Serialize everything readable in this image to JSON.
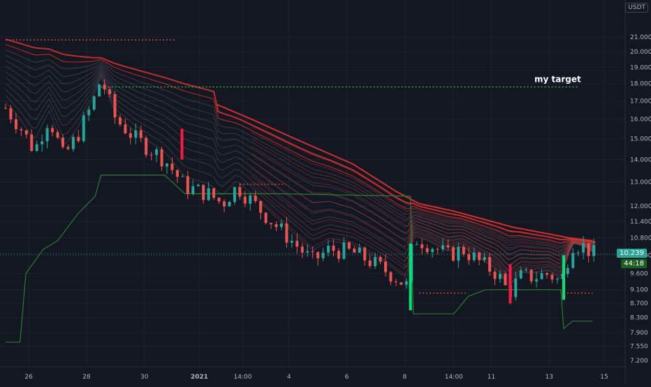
{
  "currency": "USDT",
  "chart_data": {
    "type": "candlestick",
    "annotation": "my target",
    "target_level": 17.8,
    "price_label": "10.239",
    "timer_label": "44:18",
    "y_ticks": [
      "21.000",
      "20.000",
      "19.000",
      "18.000",
      "17.000",
      "16.000",
      "15.000",
      "14.000",
      "13.000",
      "12.000",
      "11.400",
      "10.800",
      "10.200",
      "9.600",
      "9.100",
      "8.700",
      "8.300",
      "7.900",
      "7.550",
      "7.200"
    ],
    "y_tick_values": [
      21.0,
      20.0,
      19.0,
      18.0,
      17.0,
      16.0,
      15.0,
      14.0,
      13.0,
      12.0,
      11.4,
      10.8,
      10.2,
      9.6,
      9.1,
      8.7,
      8.3,
      7.9,
      7.55,
      7.2
    ],
    "x_labels": [
      "26",
      "28",
      "30",
      "2021",
      "14:00",
      "4",
      "6",
      "8",
      "14:00",
      "11",
      "13",
      "15"
    ],
    "ylim": [
      7.0,
      22.0
    ],
    "log_scale": true,
    "grid": true,
    "close_path": [
      [
        0,
        16.6
      ],
      [
        0.5,
        15.6
      ],
      [
        1,
        14.4
      ],
      [
        1.5,
        16.1
      ],
      [
        2,
        14.1
      ],
      [
        2.5,
        15.2
      ],
      [
        3,
        16.8
      ],
      [
        3.3,
        18.3
      ],
      [
        3.8,
        16.0
      ],
      [
        4.5,
        15.0
      ],
      [
        5.5,
        14.0
      ],
      [
        6.2,
        12.8
      ],
      [
        7,
        12.5
      ],
      [
        7.5,
        12.1
      ],
      [
        8,
        12.8
      ],
      [
        8.5,
        12.2
      ],
      [
        9.3,
        11.3
      ],
      [
        10,
        10.6
      ],
      [
        10.6,
        10.0
      ],
      [
        11.2,
        10.4
      ],
      [
        12,
        10.3
      ],
      [
        12.6,
        10.0
      ],
      [
        13.3,
        9.6
      ],
      [
        13.9,
        9.2
      ],
      [
        14.1,
        10.8
      ],
      [
        14.6,
        10.6
      ],
      [
        15.3,
        10.2
      ],
      [
        15.8,
        10.4
      ],
      [
        16.5,
        9.9
      ],
      [
        17,
        9.6
      ],
      [
        17.4,
        9.0
      ],
      [
        17.8,
        9.5
      ],
      [
        18.3,
        9.5
      ],
      [
        18.8,
        9.6
      ],
      [
        19.2,
        9.3
      ],
      [
        19.6,
        10.6
      ],
      [
        20,
        10.5
      ],
      [
        20.4,
        10.2
      ]
    ],
    "x_label_positions": [
      0.8,
      2.8,
      4.8,
      6.7,
      8.2,
      9.8,
      11.8,
      13.8,
      15.5,
      16.8,
      18.8,
      20.7
    ],
    "support_line": [
      [
        0,
        7.65
      ],
      [
        0.5,
        7.65
      ],
      [
        0.7,
        9.6
      ],
      [
        1.3,
        10.4
      ],
      [
        1.8,
        10.7
      ],
      [
        2.5,
        11.7
      ],
      [
        3.1,
        12.4
      ],
      [
        3.3,
        13.3
      ],
      [
        5.5,
        13.3
      ],
      [
        6.2,
        12.5
      ],
      [
        9.5,
        12.5
      ],
      [
        14.0,
        12.4
      ],
      [
        14.1,
        8.4
      ],
      [
        15.5,
        8.4
      ],
      [
        16.0,
        8.9
      ],
      [
        16.6,
        9.1
      ],
      [
        19.2,
        9.1
      ],
      [
        19.3,
        8.0
      ],
      [
        19.6,
        8.2
      ],
      [
        20.3,
        8.2
      ]
    ],
    "upper_trend": [
      [
        7.3,
        16.8
      ],
      [
        8.5,
        16.0
      ],
      [
        10,
        15.0
      ],
      [
        12,
        13.8
      ],
      [
        13.5,
        12.6
      ],
      [
        14.3,
        12.1
      ],
      [
        15.5,
        11.8
      ],
      [
        16.5,
        11.5
      ],
      [
        17.5,
        11.2
      ],
      [
        18.5,
        11.0
      ],
      [
        19.5,
        10.8
      ],
      [
        20.3,
        10.7
      ]
    ],
    "ribbon_start": [
      0,
      21.0
    ],
    "resistance_dotted": [
      [
        0,
        20.8
      ],
      [
        5.9,
        20.8
      ]
    ],
    "red_dotted_2": [
      [
        8.1,
        12.9
      ],
      [
        9.7,
        12.9
      ]
    ],
    "red_dotted_3": [
      [
        14.3,
        9.0
      ],
      [
        16.0,
        9.0
      ]
    ],
    "red_dotted_4": [
      [
        19.3,
        9.0
      ],
      [
        20.3,
        9.0
      ]
    ],
    "colors": {
      "background": "#131722",
      "grid": "#1e222d",
      "up": "#26a69a",
      "down": "#ef5350",
      "support": "#2e7d32",
      "target": "#2ecc40",
      "ribbon_red": "#d32f2f",
      "price_badge": "#26a69a",
      "timer_badge": "#1b5e20"
    }
  }
}
